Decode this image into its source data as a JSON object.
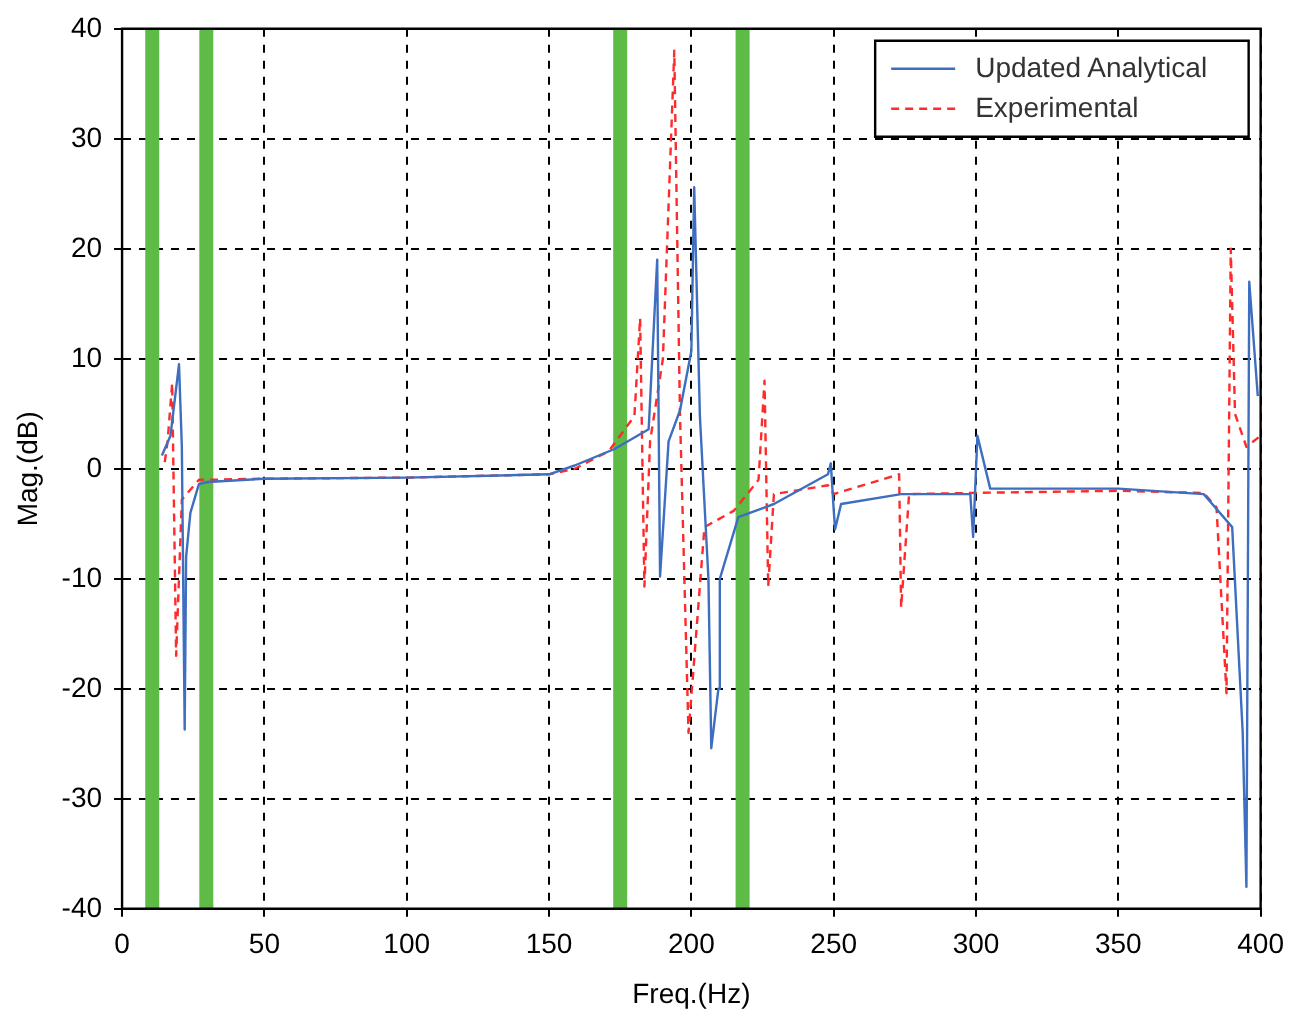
{
  "chart_data": {
    "type": "line",
    "xlabel": "Freq.(Hz)",
    "ylabel": "Mag.(dB)",
    "xlim": [
      0,
      400
    ],
    "xticks": [
      0,
      50,
      100,
      150,
      200,
      250,
      300,
      350,
      400
    ],
    "ylim": [
      -40,
      40
    ],
    "yticks": [
      -40,
      -30,
      -20,
      -10,
      0,
      10,
      20,
      30,
      40
    ],
    "grid": true,
    "legend": "top right",
    "marker": "none",
    "series": [
      {
        "name": "Updated Analytical",
        "color": "#3d6ebf",
        "line_style": "solid",
        "x": [
          14,
          17,
          20,
          21,
          22,
          22.5,
          24,
          27,
          30,
          50,
          100,
          150,
          159,
          173,
          185,
          188,
          189,
          192,
          196,
          200,
          201,
          203,
          206,
          207,
          209.5,
          210,
          216.5,
          229,
          248,
          249,
          250,
          250.5,
          252.6,
          273.7,
          298,
          299,
          300.5,
          305,
          350,
          380,
          390,
          393.7,
          395,
          396,
          399
        ],
        "values": [
          1.2,
          3,
          9.5,
          2,
          -23.7,
          -8,
          -4,
          -1.4,
          -1.2,
          -0.9,
          -0.8,
          -0.5,
          0.3,
          1.8,
          3.6,
          19,
          -9.8,
          2.5,
          5.3,
          10.7,
          25.6,
          4.8,
          -10,
          -25.4,
          -20,
          -10,
          -4.4,
          -3.2,
          -0.5,
          0.5,
          -3.7,
          -5.5,
          -3.2,
          -2.3,
          -2.3,
          -6.2,
          3,
          -1.8,
          -1.8,
          -2.3,
          -5.3,
          -24,
          -38,
          17,
          6.6
        ]
      },
      {
        "name": "Experimental",
        "color": "#ff2a2a",
        "line_style": "dashed",
        "x": [
          15,
          16,
          17.6,
          19,
          21,
          27,
          30,
          50,
          100,
          150,
          159,
          171,
          180,
          182,
          183.5,
          185.5,
          190,
          194,
          196,
          199,
          204.6,
          215,
          223.6,
          225.7,
          227,
          229,
          248,
          250,
          273,
          273.7,
          276.5,
          297,
          350,
          380,
          384.5,
          388,
          389.5,
          391,
          395,
          400
        ],
        "values": [
          0.6,
          2.5,
          7.8,
          -17,
          -2.8,
          -1,
          -1,
          -0.9,
          -0.8,
          -0.5,
          0,
          1.6,
          4.8,
          13.7,
          -10.7,
          2.5,
          10,
          38,
          5,
          -24,
          -5.3,
          -3.8,
          -1,
          8,
          -10.7,
          -2.3,
          -1.5,
          -2.3,
          -0.5,
          -12.6,
          -2.3,
          -2.2,
          -2,
          -2.2,
          -3.5,
          -20.4,
          20,
          5,
          2,
          3
        ]
      }
    ],
    "ref_lines": [
      {
        "axis": "x",
        "value": 10.6,
        "color": "#5dbb46"
      },
      {
        "axis": "x",
        "value": 29.6,
        "color": "#5dbb46"
      },
      {
        "axis": "x",
        "value": 175,
        "color": "#5dbb46"
      },
      {
        "axis": "x",
        "value": 218,
        "color": "#5dbb46"
      }
    ]
  }
}
